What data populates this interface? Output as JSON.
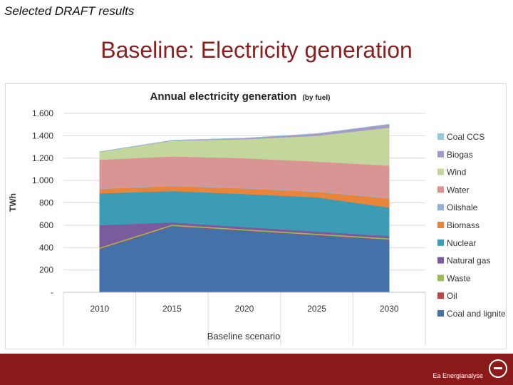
{
  "slide": {
    "header": "Selected DRAFT results",
    "title": "Baseline: Electricity generation",
    "footer_brand": "Ea Energianalyse"
  },
  "chart_data": {
    "type": "area",
    "title": "Annual electricity generation",
    "title_suffix": "(by fuel)",
    "xlabel": "Baseline scenario",
    "ylabel": "TWh",
    "categories": [
      "2010",
      "2015",
      "2020",
      "2025",
      "2030"
    ],
    "yticks": [
      "-",
      "200",
      "400",
      "600",
      "800",
      "1.000",
      "1.200",
      "1.400",
      "1.600"
    ],
    "ylim": [
      0,
      1600
    ],
    "grid": true,
    "stacked": true,
    "legend_position": "right",
    "series": [
      {
        "name": "Coal and lignite",
        "color": "#4472a8",
        "values": [
          385,
          590,
          550,
          510,
          470
        ]
      },
      {
        "name": "Oil",
        "color": "#b94a48",
        "values": [
          5,
          5,
          4,
          4,
          3
        ]
      },
      {
        "name": "Waste",
        "color": "#9bbb59",
        "values": [
          10,
          10,
          10,
          10,
          10
        ]
      },
      {
        "name": "Natural gas",
        "color": "#7a5b9e",
        "values": [
          200,
          20,
          20,
          20,
          20
        ]
      },
      {
        "name": "Nuclear",
        "color": "#3c9bb5",
        "values": [
          285,
          280,
          295,
          305,
          255
        ]
      },
      {
        "name": "Biomass",
        "color": "#e8853a",
        "values": [
          40,
          45,
          50,
          50,
          80
        ]
      },
      {
        "name": "Oilshale",
        "color": "#9bb0d8",
        "values": [
          5,
          5,
          5,
          5,
          5
        ]
      },
      {
        "name": "Water",
        "color": "#d99594",
        "values": [
          255,
          260,
          265,
          265,
          290
        ]
      },
      {
        "name": "Wind",
        "color": "#c3d69b",
        "values": [
          70,
          140,
          170,
          230,
          340
        ]
      },
      {
        "name": "Biogas",
        "color": "#a59ac8",
        "values": [
          2,
          5,
          10,
          20,
          30
        ]
      },
      {
        "name": "Coal CCS",
        "color": "#92cddc",
        "values": [
          0,
          0,
          0,
          0,
          0
        ]
      }
    ]
  }
}
